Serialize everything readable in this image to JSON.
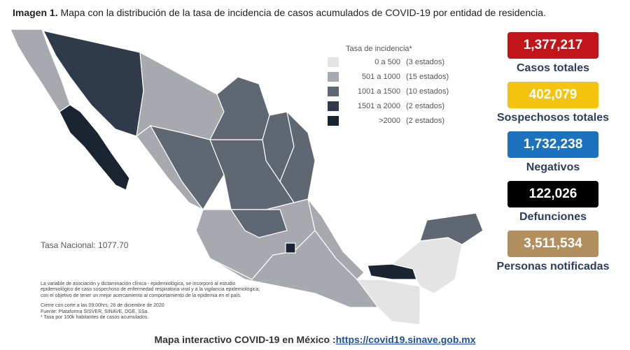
{
  "header": {
    "label": "Imagen 1.",
    "title": "Mapa con la distribución de la tasa de incidencia de casos acumulados de COVID-19 por entidad de residencia."
  },
  "legend": {
    "title": "Tasa de incidencia*",
    "items": [
      {
        "range": "0 a 500",
        "count": "(3 estados)",
        "color": "#e4e4e4"
      },
      {
        "range": "501 a 1000",
        "count": "(15 estados)",
        "color": "#a7a9ae"
      },
      {
        "range": "1001 a 1500",
        "count": "(10 estados)",
        "color": "#5e6772"
      },
      {
        "range": "1501 a 2000",
        "count": "(2 estados)",
        "color": "#2f3b4a"
      },
      {
        "range": ">2000",
        "count": "(2 estados)",
        "color": "#1b2532"
      }
    ]
  },
  "national_rate": "Tasa Nacional: 1077.70",
  "notes": [
    "La variable de asociación y dictaminación clínica - epidemiológica, se incorporó al estudio",
    "epidemiológico de caso sospechoso de enfermedad respiratoria viral y a la vigilancia epidemiológica;",
    "con el objetivo de tener un mejor acercamiento al comportamiento de la epidemia en el país.",
    "Cierre con corte a las 09:00hrs, 26 de diciembre de 2020",
    "Fuente: Plataforma SISVER, SINAVE, DGE, SSa.",
    "* Tasa por 100k habitantes de casos acumulados."
  ],
  "stats": [
    {
      "value": "1,377,217",
      "label": "Casos totales",
      "color": "#c1151b"
    },
    {
      "value": "402,079",
      "label": "Sospechosos totales",
      "color": "#f5c40f"
    },
    {
      "value": "1,732,238",
      "label": "Negativos",
      "color": "#1d72bf"
    },
    {
      "value": "122,026",
      "label": "Defunciones",
      "color": "#000000"
    },
    {
      "value": "3,511,534",
      "label": "Personas notificadas",
      "color": "#b18f5e"
    }
  ],
  "footer": {
    "text": "Mapa interactivo COVID-19 en México :",
    "link": "https://covid19.sinave.gob.mx"
  }
}
